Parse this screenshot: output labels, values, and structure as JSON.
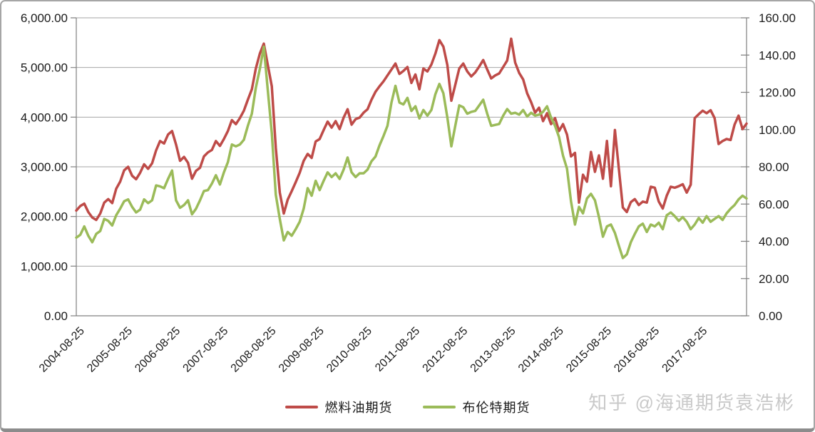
{
  "watermark": {
    "text": "知乎 @海通期货袁浩彬"
  },
  "chart_data": {
    "type": "line",
    "title": "",
    "grid": true,
    "legend_position": "bottom",
    "x_tick_labels": [
      "2004-08-25",
      "2005-08-25",
      "2006-08-25",
      "2007-08-25",
      "2008-08-25",
      "2009-08-25",
      "2010-08-25",
      "2011-08-25",
      "2012-08-25",
      "2013-08-25",
      "2014-08-25",
      "2015-08-25",
      "2016-08-25",
      "2017-08-25"
    ],
    "left_axis": {
      "min": 0,
      "max": 6000,
      "step": 1000,
      "tick_labels": [
        "6,000.00",
        "5,000.00",
        "4,000.00",
        "3,000.00",
        "2,000.00",
        "1,000.00",
        "0.00"
      ]
    },
    "right_axis": {
      "min": 0,
      "max": 160,
      "step": 20,
      "tick_labels": [
        "160.00",
        "140.00",
        "120.00",
        "100.00",
        "80.00",
        "60.00",
        "40.00",
        "20.00",
        "0.00"
      ]
    },
    "series": [
      {
        "name": "燃料油期货",
        "color": "#BE4B48",
        "axis": "left",
        "values": [
          2120,
          2210,
          2260,
          2090,
          1980,
          1930,
          2060,
          2280,
          2350,
          2270,
          2560,
          2700,
          2930,
          3000,
          2820,
          2750,
          2880,
          3050,
          2960,
          3070,
          3330,
          3520,
          3470,
          3650,
          3720,
          3450,
          3120,
          3200,
          3080,
          2760,
          2920,
          2980,
          3210,
          3290,
          3340,
          3520,
          3420,
          3560,
          3720,
          3940,
          3860,
          3980,
          4130,
          4350,
          4560,
          4980,
          5280,
          5480,
          5050,
          4620,
          3380,
          2480,
          2060,
          2340,
          2510,
          2690,
          2880,
          3120,
          3260,
          3180,
          3510,
          3560,
          3740,
          3910,
          3790,
          3920,
          3760,
          3990,
          4160,
          3850,
          3960,
          3990,
          4090,
          4160,
          4350,
          4510,
          4620,
          4720,
          4840,
          4960,
          5080,
          4870,
          4930,
          5010,
          4690,
          4860,
          4560,
          4980,
          4920,
          5060,
          5280,
          5550,
          5420,
          5050,
          4330,
          4650,
          4980,
          5080,
          4920,
          4820,
          4900,
          5020,
          5150,
          4960,
          4780,
          4840,
          4880,
          5010,
          5140,
          5580,
          5100,
          4890,
          4760,
          4480,
          4300,
          4090,
          4190,
          3920,
          4080,
          3860,
          3980,
          3720,
          3860,
          3650,
          3210,
          3280,
          2280,
          2840,
          2700,
          3300,
          2900,
          3230,
          2760,
          3520,
          2610,
          3740,
          2950,
          2180,
          2090,
          2290,
          2350,
          2230,
          2300,
          2280,
          2600,
          2580,
          2300,
          2160,
          2420,
          2600,
          2580,
          2610,
          2650,
          2480,
          2640,
          3980,
          4060,
          4130,
          4080,
          4140,
          3980,
          3460,
          3520,
          3560,
          3540,
          3850,
          4030,
          3760,
          3870
        ]
      },
      {
        "name": "布伦特期货",
        "color": "#9BBB59",
        "axis": "right",
        "values": [
          42,
          43.5,
          48,
          43,
          39.5,
          44,
          45.5,
          52,
          51,
          48.5,
          54,
          57.5,
          61.5,
          62.5,
          58.5,
          55.5,
          57,
          62.5,
          60.5,
          62,
          70,
          69.5,
          68.5,
          73.5,
          78,
          62,
          58,
          59.5,
          62,
          54.5,
          57.5,
          62,
          67,
          67.5,
          71,
          75.5,
          70.5,
          77,
          82.5,
          92,
          91,
          92,
          94.5,
          102,
          108.5,
          122.5,
          132.5,
          144.5,
          121,
          98,
          65,
          52,
          40.5,
          45,
          43,
          46.5,
          50.5,
          57.5,
          68.5,
          64.5,
          72.5,
          67.5,
          72.5,
          77,
          74.5,
          76.5,
          73.5,
          78.5,
          85,
          77,
          74.5,
          76.5,
          76.5,
          78.5,
          83,
          85.5,
          91.5,
          96.5,
          102,
          114.5,
          123.5,
          114.5,
          113.5,
          117,
          110,
          112.5,
          106,
          110.5,
          107.5,
          110.5,
          119,
          124.5,
          119.5,
          106.5,
          91,
          102,
          113,
          112,
          108.5,
          109.5,
          110,
          113,
          116,
          108.5,
          102,
          102.5,
          103,
          107.5,
          111,
          108.5,
          109,
          108,
          110.5,
          107,
          109,
          107.5,
          108,
          109.5,
          112.5,
          106.5,
          102,
          96,
          86,
          79,
          61.5,
          49,
          58.5,
          55,
          63,
          65.5,
          62,
          53,
          42.5,
          48,
          49,
          44.5,
          37.5,
          31,
          33,
          39.5,
          44,
          48,
          49.5,
          45,
          49,
          48,
          50,
          46.5,
          54,
          55.5,
          53.5,
          51,
          53,
          50.5,
          46.5,
          49,
          52.5,
          50,
          53.5,
          50.5,
          52,
          53.5,
          51.5,
          55,
          57.5,
          59.5,
          62.5,
          64.5,
          63
        ]
      }
    ]
  }
}
